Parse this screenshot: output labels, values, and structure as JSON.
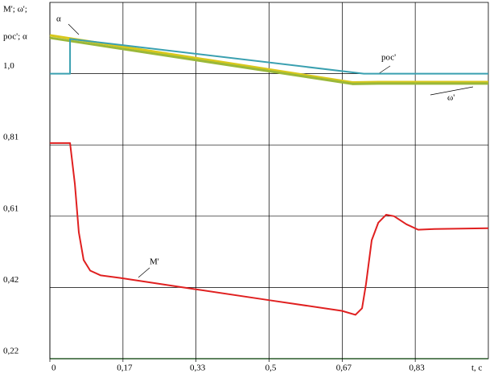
{
  "chart_data": {
    "type": "line",
    "y_label": [
      "M'; ω';",
      "pос'; α"
    ],
    "x_label": "t, c",
    "xlim": [
      0,
      1
    ],
    "xticks": [
      0,
      {
        "value": 0.1667,
        "label": "0,17"
      },
      {
        "value": 0.3333,
        "label": "0,33"
      },
      {
        "value": 0.5,
        "label": "0,5"
      },
      {
        "value": 0.6667,
        "label": "0,67"
      },
      {
        "value": 0.8333,
        "label": "0,83"
      }
    ],
    "ylim": [
      0.22,
      1.195
    ],
    "yticks": [
      {
        "value": 0.22,
        "label": "0,22"
      },
      {
        "value": 0.415,
        "label": "0,42"
      },
      {
        "value": 0.61,
        "label": "0,61"
      },
      {
        "value": 0.805,
        "label": "0,81"
      },
      {
        "value": 1.0,
        "label": "1,0"
      }
    ],
    "grid": true,
    "series": [
      {
        "name": "α",
        "color": "#d8c81c",
        "x": [
          0,
          0.69,
          0.75,
          1
        ],
        "values": [
          1.105,
          0.976,
          0.977,
          0.977
        ]
      },
      {
        "name": "ω'",
        "color": "#9ab83a",
        "x": [
          0,
          0.69,
          0.75,
          1
        ],
        "values": [
          1.098,
          0.972,
          0.973,
          0.973
        ]
      },
      {
        "name": "pос'",
        "color": "#3aa0b0",
        "x": [
          0,
          0.046,
          0.046,
          0.716,
          1
        ],
        "values": [
          1.0,
          1.0,
          1.095,
          1.0,
          1.0
        ]
      },
      {
        "name": "M'",
        "color": "#e02020",
        "x": [
          0,
          0.046,
          0.057,
          0.066,
          0.077,
          0.092,
          0.116,
          0.161,
          0.327,
          0.501,
          0.666,
          0.697,
          0.712,
          0.721,
          0.734,
          0.749,
          0.767,
          0.785,
          0.813,
          0.84,
          0.877,
          1
        ],
        "values": [
          0.81,
          0.81,
          0.698,
          0.566,
          0.49,
          0.461,
          0.448,
          0.441,
          0.411,
          0.38,
          0.351,
          0.34,
          0.358,
          0.424,
          0.544,
          0.592,
          0.614,
          0.61,
          0.588,
          0.573,
          0.575,
          0.577
        ]
      }
    ]
  }
}
